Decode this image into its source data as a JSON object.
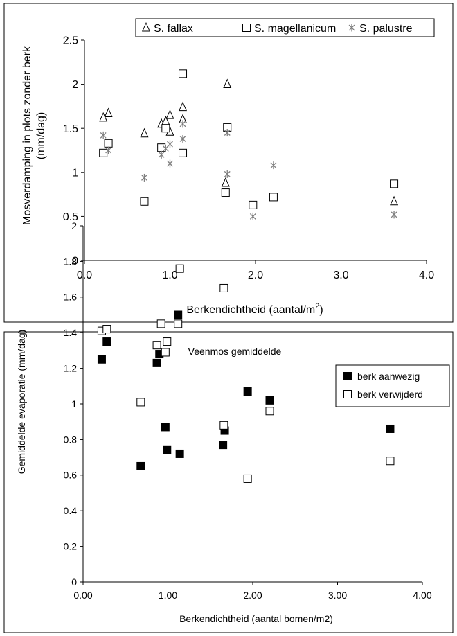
{
  "chart_data": [
    {
      "type": "scatter",
      "title": "",
      "xlabel": "Berkendichtheid (aantal/m",
      "xlabel_sup": "2",
      "xlabel_end": ")",
      "ylabel_line1": "Mosverdamping in plots zonder berk",
      "ylabel_line2": "(mm/dag)",
      "xlim": [
        0,
        4
      ],
      "ylim": [
        0,
        2.5
      ],
      "x_ticks": [
        "0.0",
        "1.0",
        "2.0",
        "3.0",
        "4.0"
      ],
      "y_ticks": [
        "0",
        "0.5",
        "1",
        "1.5",
        "2",
        "2.5"
      ],
      "legend_position": "top-right",
      "series": [
        {
          "name": "S. fallax",
          "marker": "triangle",
          "points": [
            [
              0.22,
              1.62
            ],
            [
              0.28,
              1.67
            ],
            [
              0.7,
              1.44
            ],
            [
              0.9,
              1.55
            ],
            [
              0.95,
              1.58
            ],
            [
              1.0,
              1.65
            ],
            [
              1.0,
              1.46
            ],
            [
              1.15,
              1.74
            ],
            [
              1.15,
              1.6
            ],
            [
              1.67,
              2.0
            ],
            [
              1.65,
              0.88
            ],
            [
              3.62,
              0.67
            ]
          ]
        },
        {
          "name": "S. magellanicum",
          "marker": "square",
          "points": [
            [
              0.22,
              1.22
            ],
            [
              0.28,
              1.33
            ],
            [
              0.7,
              0.67
            ],
            [
              0.9,
              1.28
            ],
            [
              0.95,
              1.5
            ],
            [
              1.15,
              2.12
            ],
            [
              1.15,
              1.22
            ],
            [
              1.67,
              1.51
            ],
            [
              1.65,
              0.77
            ],
            [
              1.97,
              0.63
            ],
            [
              2.21,
              0.72
            ],
            [
              3.62,
              0.87
            ]
          ]
        },
        {
          "name": "S. palustre",
          "marker": "star",
          "points": [
            [
              0.22,
              1.42
            ],
            [
              0.28,
              1.25
            ],
            [
              0.7,
              0.94
            ],
            [
              0.9,
              1.2
            ],
            [
              0.95,
              1.27
            ],
            [
              1.0,
              1.1
            ],
            [
              1.0,
              1.32
            ],
            [
              1.15,
              1.55
            ],
            [
              1.15,
              1.38
            ],
            [
              1.67,
              0.98
            ],
            [
              1.67,
              1.45
            ],
            [
              1.97,
              0.5
            ],
            [
              2.21,
              1.08
            ],
            [
              3.62,
              0.52
            ]
          ]
        }
      ]
    },
    {
      "type": "scatter",
      "title": "Veenmos gemiddelde",
      "xlabel": "Berkendichtheid (aantal bomen/m2)",
      "ylabel": "Gemiddelde evaporatie (mm/dag)",
      "xlim": [
        0,
        4
      ],
      "ylim": [
        0,
        2
      ],
      "x_ticks": [
        "0.00",
        "1.00",
        "2.00",
        "3.00",
        "4.00"
      ],
      "y_ticks": [
        "0",
        "0.2",
        "0.4",
        "0.6",
        "0.8",
        "1",
        "1.2",
        "1.4",
        "1.6",
        "1.8",
        "2"
      ],
      "legend_position": "top-right",
      "series": [
        {
          "name": "berk aanwezig",
          "marker": "filled-square",
          "points": [
            [
              0.22,
              1.25
            ],
            [
              0.28,
              1.35
            ],
            [
              0.68,
              0.65
            ],
            [
              0.87,
              1.23
            ],
            [
              0.9,
              1.28
            ],
            [
              0.97,
              0.87
            ],
            [
              0.99,
              0.74
            ],
            [
              1.12,
              1.5
            ],
            [
              1.14,
              0.72
            ],
            [
              1.65,
              0.77
            ],
            [
              1.67,
              0.85
            ],
            [
              1.94,
              1.07
            ],
            [
              2.2,
              1.02
            ],
            [
              3.62,
              0.86
            ]
          ]
        },
        {
          "name": "berk verwijderd",
          "marker": "open-square",
          "points": [
            [
              0.22,
              1.41
            ],
            [
              0.28,
              1.42
            ],
            [
              0.68,
              1.01
            ],
            [
              0.87,
              1.33
            ],
            [
              0.92,
              1.45
            ],
            [
              0.97,
              1.29
            ],
            [
              0.99,
              1.35
            ],
            [
              1.12,
              1.45
            ],
            [
              1.14,
              1.76
            ],
            [
              1.66,
              1.65
            ],
            [
              1.66,
              0.88
            ],
            [
              1.94,
              0.58
            ],
            [
              2.2,
              0.96
            ],
            [
              3.62,
              0.68
            ]
          ]
        }
      ]
    }
  ]
}
